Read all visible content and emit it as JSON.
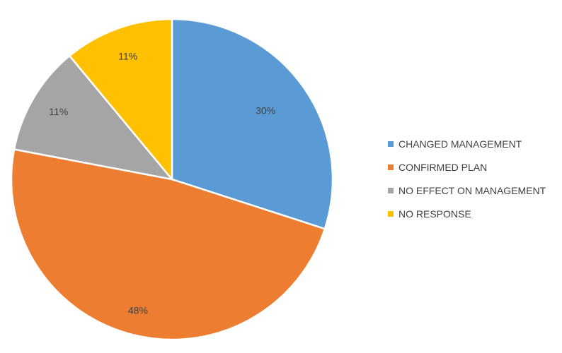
{
  "chart_data": {
    "type": "pie",
    "title": "",
    "categories": [
      "CHANGED MANAGEMENT",
      "CONFIRMED PLAN",
      "NO EFFECT ON MANAGEMENT",
      "NO RESPONSE"
    ],
    "values": [
      30,
      48,
      11,
      11
    ],
    "data_labels": [
      "30%",
      "48%",
      "11%",
      "11%"
    ],
    "colors": [
      "#5B9BD5",
      "#ED7D31",
      "#A5A5A5",
      "#FFC000"
    ],
    "start_angle_deg": 0,
    "direction": "clockwise",
    "legend_position": "right"
  },
  "legend": {
    "items": [
      {
        "label": "CHANGED MANAGEMENT",
        "color": "#5B9BD5"
      },
      {
        "label": "CONFIRMED PLAN",
        "color": "#ED7D31"
      },
      {
        "label": "NO EFFECT ON MANAGEMENT",
        "color": "#A5A5A5"
      },
      {
        "label": "NO RESPONSE",
        "color": "#FFC000"
      }
    ]
  }
}
